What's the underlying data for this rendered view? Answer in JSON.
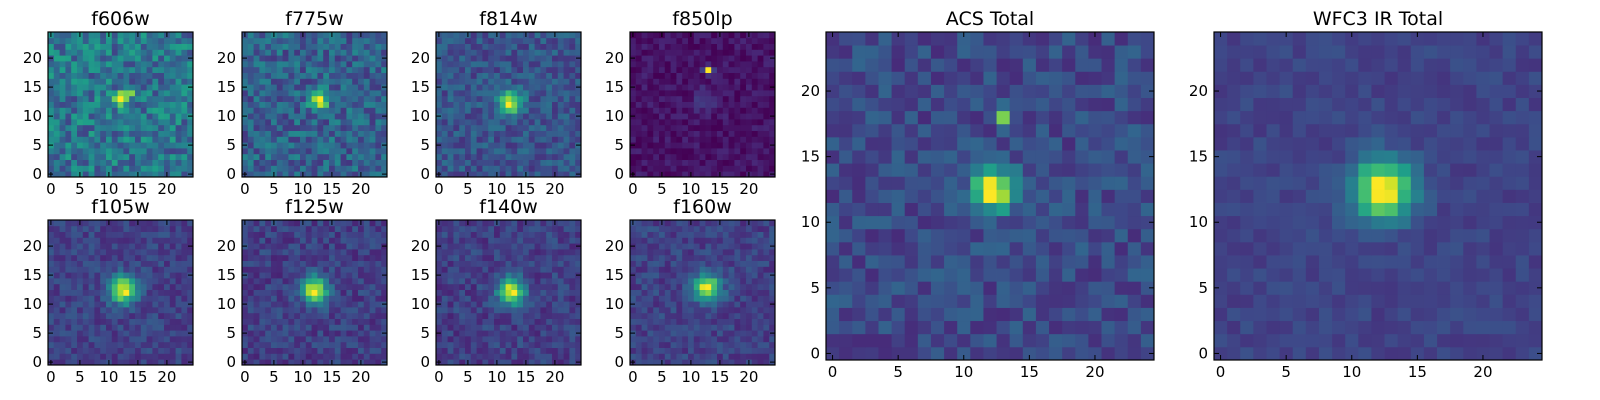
{
  "figure": {
    "colormap": "viridis",
    "colors": [
      "#440154",
      "#482878",
      "#3e4989",
      "#31688e",
      "#26828e",
      "#1f9e89",
      "#35b779",
      "#6ece58",
      "#b5de2b",
      "#fde725"
    ]
  },
  "chart_data": [
    {
      "type": "heatmap",
      "title": "f606w",
      "grid_size": 25,
      "xlim": [
        0,
        24
      ],
      "ylim": [
        0,
        24
      ],
      "x_ticks": [
        0,
        5,
        10,
        15,
        20
      ],
      "y_ticks": [
        0,
        5,
        10,
        15,
        20
      ],
      "background_level": 0.42,
      "noise": 0.2,
      "sources": [
        {
          "x": 12,
          "y": 13,
          "amp": 0.58,
          "sigma": 0.85
        },
        {
          "x": 13.8,
          "y": 13.9,
          "amp": 0.38,
          "sigma": 0.55
        }
      ],
      "seed": 11
    },
    {
      "type": "heatmap",
      "title": "f775w",
      "grid_size": 25,
      "xlim": [
        0,
        24
      ],
      "ylim": [
        0,
        24
      ],
      "x_ticks": [
        0,
        5,
        10,
        15,
        20
      ],
      "y_ticks": [
        0,
        5,
        10,
        15,
        20
      ],
      "background_level": 0.32,
      "noise": 0.16,
      "sources": [
        {
          "x": 12.8,
          "y": 12.8,
          "amp": 0.68,
          "sigma": 1.1
        }
      ],
      "seed": 23
    },
    {
      "type": "heatmap",
      "title": "f814w",
      "grid_size": 25,
      "xlim": [
        0,
        24
      ],
      "ylim": [
        0,
        24
      ],
      "x_ticks": [
        0,
        5,
        10,
        15,
        20
      ],
      "y_ticks": [
        0,
        5,
        10,
        15,
        20
      ],
      "background_level": 0.27,
      "noise": 0.12,
      "sources": [
        {
          "x": 12.3,
          "y": 12.4,
          "amp": 0.7,
          "sigma": 1.4
        }
      ],
      "seed": 37
    },
    {
      "type": "heatmap",
      "title": "f850lp",
      "grid_size": 25,
      "xlim": [
        0,
        24
      ],
      "ylim": [
        0,
        24
      ],
      "x_ticks": [
        0,
        5,
        10,
        15,
        20
      ],
      "y_ticks": [
        0,
        5,
        10,
        15,
        20
      ],
      "background_level": 0.05,
      "noise": 0.06,
      "sources": [
        {
          "x": 13,
          "y": 18,
          "amp": 0.95,
          "sigma": 0.45
        },
        {
          "x": 12.5,
          "y": 13,
          "amp": 0.12,
          "sigma": 1.6
        }
      ],
      "seed": 41
    },
    {
      "type": "heatmap",
      "title": "f105w",
      "grid_size": 25,
      "xlim": [
        0,
        24
      ],
      "ylim": [
        0,
        24
      ],
      "x_ticks": [
        0,
        5,
        10,
        15,
        20
      ],
      "y_ticks": [
        0,
        5,
        10,
        15,
        20
      ],
      "background_level": 0.2,
      "noise": 0.09,
      "sources": [
        {
          "x": 12.5,
          "y": 12.5,
          "amp": 0.8,
          "sigma": 1.6
        }
      ],
      "seed": 53
    },
    {
      "type": "heatmap",
      "title": "f125w",
      "grid_size": 25,
      "xlim": [
        0,
        24
      ],
      "ylim": [
        0,
        24
      ],
      "x_ticks": [
        0,
        5,
        10,
        15,
        20
      ],
      "y_ticks": [
        0,
        5,
        10,
        15,
        20
      ],
      "background_level": 0.2,
      "noise": 0.1,
      "sources": [
        {
          "x": 12,
          "y": 12.5,
          "amp": 0.8,
          "sigma": 1.6
        }
      ],
      "seed": 67
    },
    {
      "type": "heatmap",
      "title": "f140w",
      "grid_size": 25,
      "xlim": [
        0,
        24
      ],
      "ylim": [
        0,
        24
      ],
      "x_ticks": [
        0,
        5,
        10,
        15,
        20
      ],
      "y_ticks": [
        0,
        5,
        10,
        15,
        20
      ],
      "background_level": 0.2,
      "noise": 0.1,
      "sources": [
        {
          "x": 12.5,
          "y": 12.2,
          "amp": 0.8,
          "sigma": 1.6
        }
      ],
      "seed": 79
    },
    {
      "type": "heatmap",
      "title": "f160w",
      "grid_size": 25,
      "xlim": [
        0,
        24
      ],
      "ylim": [
        0,
        24
      ],
      "x_ticks": [
        0,
        5,
        10,
        15,
        20
      ],
      "y_ticks": [
        0,
        5,
        10,
        15,
        20
      ],
      "background_level": 0.2,
      "noise": 0.09,
      "sources": [
        {
          "x": 12.8,
          "y": 12.8,
          "amp": 0.8,
          "sigma": 1.6
        }
      ],
      "seed": 83
    },
    {
      "type": "heatmap",
      "title": "ACS Total",
      "grid_size": 25,
      "xlim": [
        0,
        24
      ],
      "ylim": [
        0,
        24
      ],
      "x_ticks": [
        0,
        5,
        10,
        15,
        20
      ],
      "y_ticks": [
        0,
        5,
        10,
        15,
        20
      ],
      "background_level": 0.22,
      "noise": 0.1,
      "sources": [
        {
          "x": 12.3,
          "y": 12.5,
          "amp": 0.78,
          "sigma": 1.15
        },
        {
          "x": 13,
          "y": 18,
          "amp": 0.62,
          "sigma": 0.45
        }
      ],
      "seed": 97
    },
    {
      "type": "heatmap",
      "title": "WFC3 IR Total",
      "grid_size": 25,
      "xlim": [
        0,
        24
      ],
      "ylim": [
        0,
        24
      ],
      "x_ticks": [
        0,
        5,
        10,
        15,
        20
      ],
      "y_ticks": [
        0,
        5,
        10,
        15,
        20
      ],
      "background_level": 0.2,
      "noise": 0.05,
      "sources": [
        {
          "x": 12.4,
          "y": 12.5,
          "amp": 0.82,
          "sigma": 1.6
        }
      ],
      "seed": 101
    }
  ]
}
